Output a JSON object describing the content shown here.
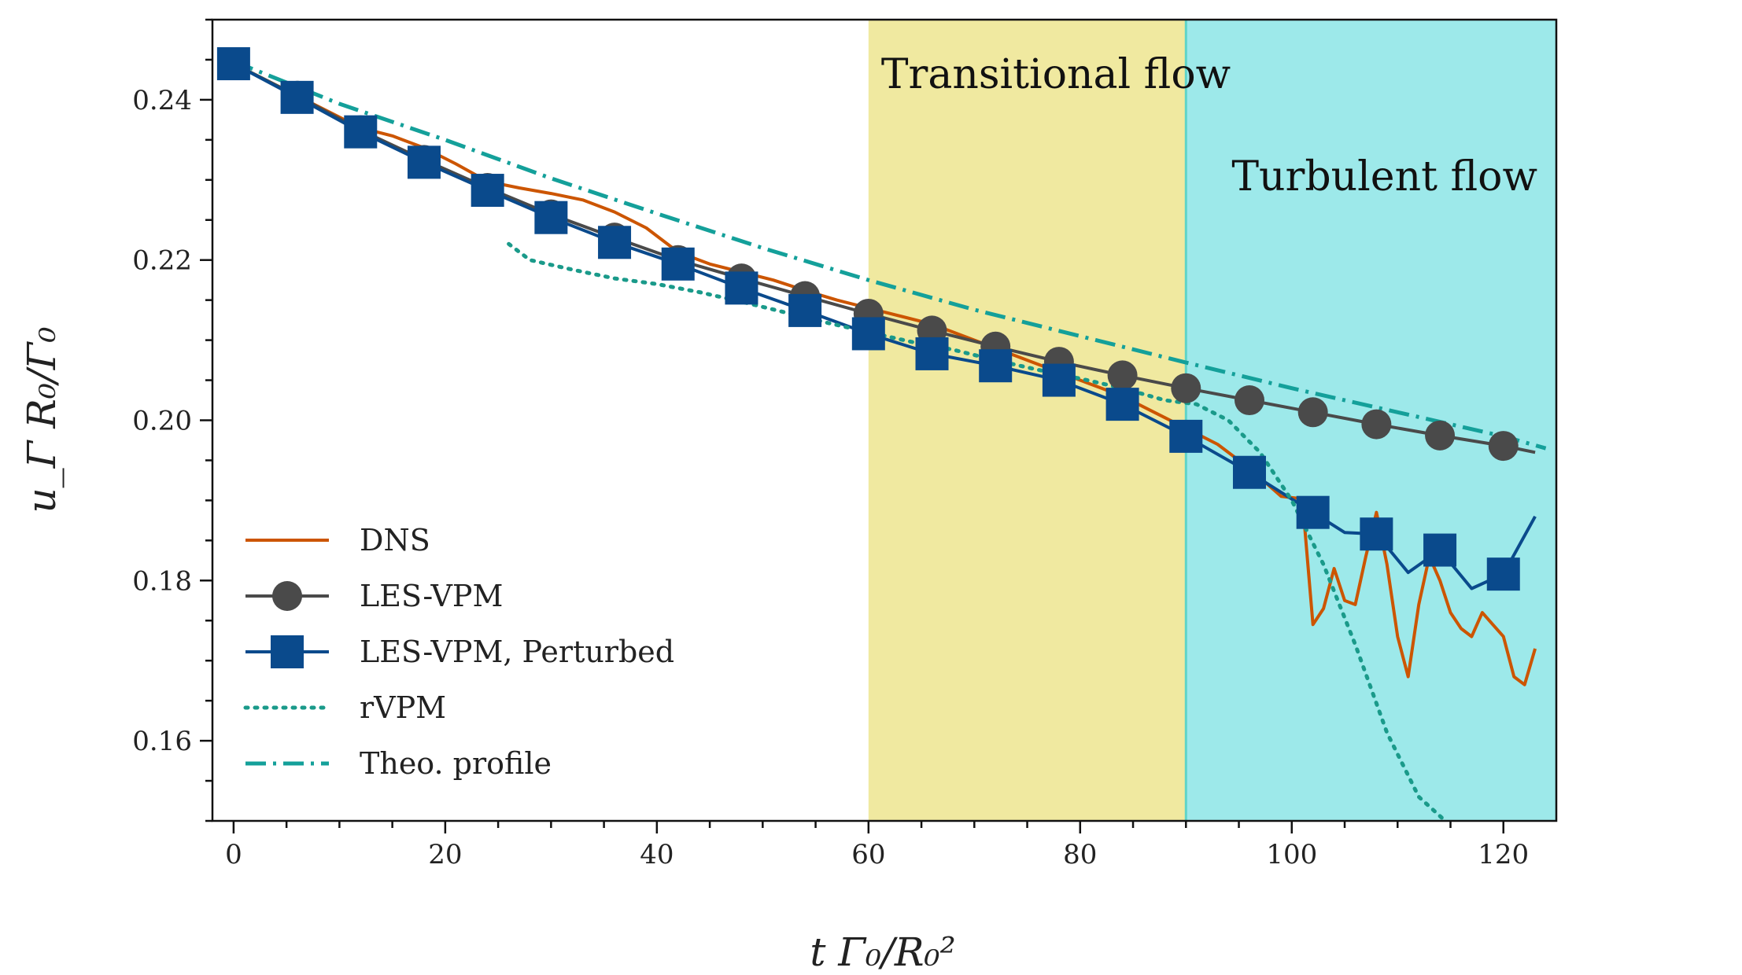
{
  "chart_data": {
    "type": "line",
    "xlabel": "t Γ₀/R₀²",
    "ylabel": "u_Γ R₀/Γ₀",
    "xlim": [
      -2,
      125
    ],
    "ylim": [
      0.15,
      0.25
    ],
    "xticks": [
      0,
      20,
      40,
      60,
      80,
      100,
      120
    ],
    "xtick_labels": [
      "0",
      "20",
      "40",
      "60",
      "80",
      "100",
      "120"
    ],
    "yticks": [
      0.16,
      0.18,
      0.2,
      0.22,
      0.24
    ],
    "ytick_labels": [
      "0.16",
      "0.18",
      "0.20",
      "0.22",
      "0.24"
    ],
    "regions": [
      {
        "name": "transitional",
        "label": "Transitional flow",
        "x0": 60,
        "x1": 90,
        "color": "#f0e9a0"
      },
      {
        "name": "turbulent",
        "label": "Turbulent flow",
        "x0": 90,
        "x1": 125,
        "color": "#9de9ea"
      }
    ],
    "legend_position": "lower-left",
    "series": [
      {
        "name": "DNS",
        "style": "solid",
        "color": "#cc5500",
        "marker": "none",
        "x": [
          0,
          3,
          6,
          9,
          12,
          15,
          18,
          21,
          24,
          27,
          30,
          33,
          36,
          39,
          42,
          45,
          48,
          51,
          54,
          57,
          60,
          63,
          66,
          69,
          72,
          75,
          78,
          81,
          84,
          87,
          90,
          93,
          96,
          99,
          101,
          102,
          103,
          104,
          105,
          106,
          107,
          108,
          109,
          110,
          111,
          112,
          113,
          114,
          115,
          116,
          117,
          118,
          119,
          120,
          121,
          122,
          123
        ],
        "y": [
          0.2445,
          0.2425,
          0.2405,
          0.2385,
          0.2365,
          0.2355,
          0.234,
          0.232,
          0.2298,
          0.229,
          0.2283,
          0.2275,
          0.226,
          0.224,
          0.221,
          0.2195,
          0.2185,
          0.2175,
          0.2162,
          0.215,
          0.214,
          0.213,
          0.212,
          0.2105,
          0.209,
          0.2075,
          0.206,
          0.2045,
          0.203,
          0.201,
          0.199,
          0.197,
          0.194,
          0.1905,
          0.1902,
          0.1745,
          0.1765,
          0.1815,
          0.1775,
          0.177,
          0.183,
          0.1885,
          0.182,
          0.173,
          0.168,
          0.177,
          0.183,
          0.18,
          0.176,
          0.174,
          0.173,
          0.176,
          0.1745,
          0.173,
          0.168,
          0.167,
          0.1715
        ]
      },
      {
        "name": "LES-VPM",
        "style": "solid",
        "color": "#4a4a4a",
        "marker": "circle",
        "x": [
          0,
          6,
          12,
          18,
          24,
          30,
          36,
          42,
          48,
          54,
          60,
          66,
          72,
          78,
          84,
          90,
          96,
          102,
          108,
          114,
          120,
          123
        ],
        "y": [
          0.2445,
          0.2405,
          0.2362,
          0.2325,
          0.229,
          0.2257,
          0.2228,
          0.22,
          0.2177,
          0.2155,
          0.2133,
          0.2112,
          0.2092,
          0.2073,
          0.2056,
          0.204,
          0.2025,
          0.201,
          0.1995,
          0.1981,
          0.1968,
          0.196
        ]
      },
      {
        "name": "LES-VPM, Perturbed",
        "style": "solid",
        "color": "#0a4a8c",
        "marker": "square",
        "x": [
          0,
          6,
          12,
          18,
          24,
          30,
          36,
          42,
          48,
          54,
          60,
          66,
          72,
          78,
          84,
          90,
          96,
          102,
          105,
          108,
          111,
          114,
          117,
          120,
          123
        ],
        "y": [
          0.2445,
          0.2403,
          0.236,
          0.2322,
          0.2287,
          0.2253,
          0.2222,
          0.2195,
          0.2165,
          0.2137,
          0.2108,
          0.2083,
          0.2068,
          0.205,
          0.202,
          0.198,
          0.1935,
          0.1885,
          0.186,
          0.1858,
          0.181,
          0.1838,
          0.179,
          0.1808,
          0.188
        ]
      },
      {
        "name": "rVPM",
        "style": "dotted",
        "color": "#1a9a8a",
        "marker": "none",
        "x": [
          26,
          28,
          32,
          36,
          40,
          44,
          48,
          52,
          56,
          60,
          64,
          68,
          72,
          76,
          80,
          84,
          88,
          91,
          94,
          97,
          100,
          103,
          106,
          109,
          112,
          114.5
        ],
        "y": [
          0.222,
          0.22,
          0.2188,
          0.2177,
          0.217,
          0.216,
          0.2148,
          0.2135,
          0.2122,
          0.211,
          0.2098,
          0.2088,
          0.2075,
          0.2063,
          0.2052,
          0.204,
          0.2025,
          0.202,
          0.2,
          0.196,
          0.19,
          0.182,
          0.172,
          0.161,
          0.153,
          0.15
        ]
      },
      {
        "name": "Theo. profile",
        "style": "dashdot",
        "color": "#14a09a",
        "marker": "none",
        "x": [
          0,
          10,
          20,
          30,
          40,
          50,
          60,
          70,
          80,
          90,
          100,
          110,
          120,
          124
        ],
        "y": [
          0.2448,
          0.2395,
          0.235,
          0.2302,
          0.2258,
          0.2215,
          0.2175,
          0.2138,
          0.2105,
          0.2072,
          0.204,
          0.201,
          0.198,
          0.1965
        ]
      }
    ]
  }
}
